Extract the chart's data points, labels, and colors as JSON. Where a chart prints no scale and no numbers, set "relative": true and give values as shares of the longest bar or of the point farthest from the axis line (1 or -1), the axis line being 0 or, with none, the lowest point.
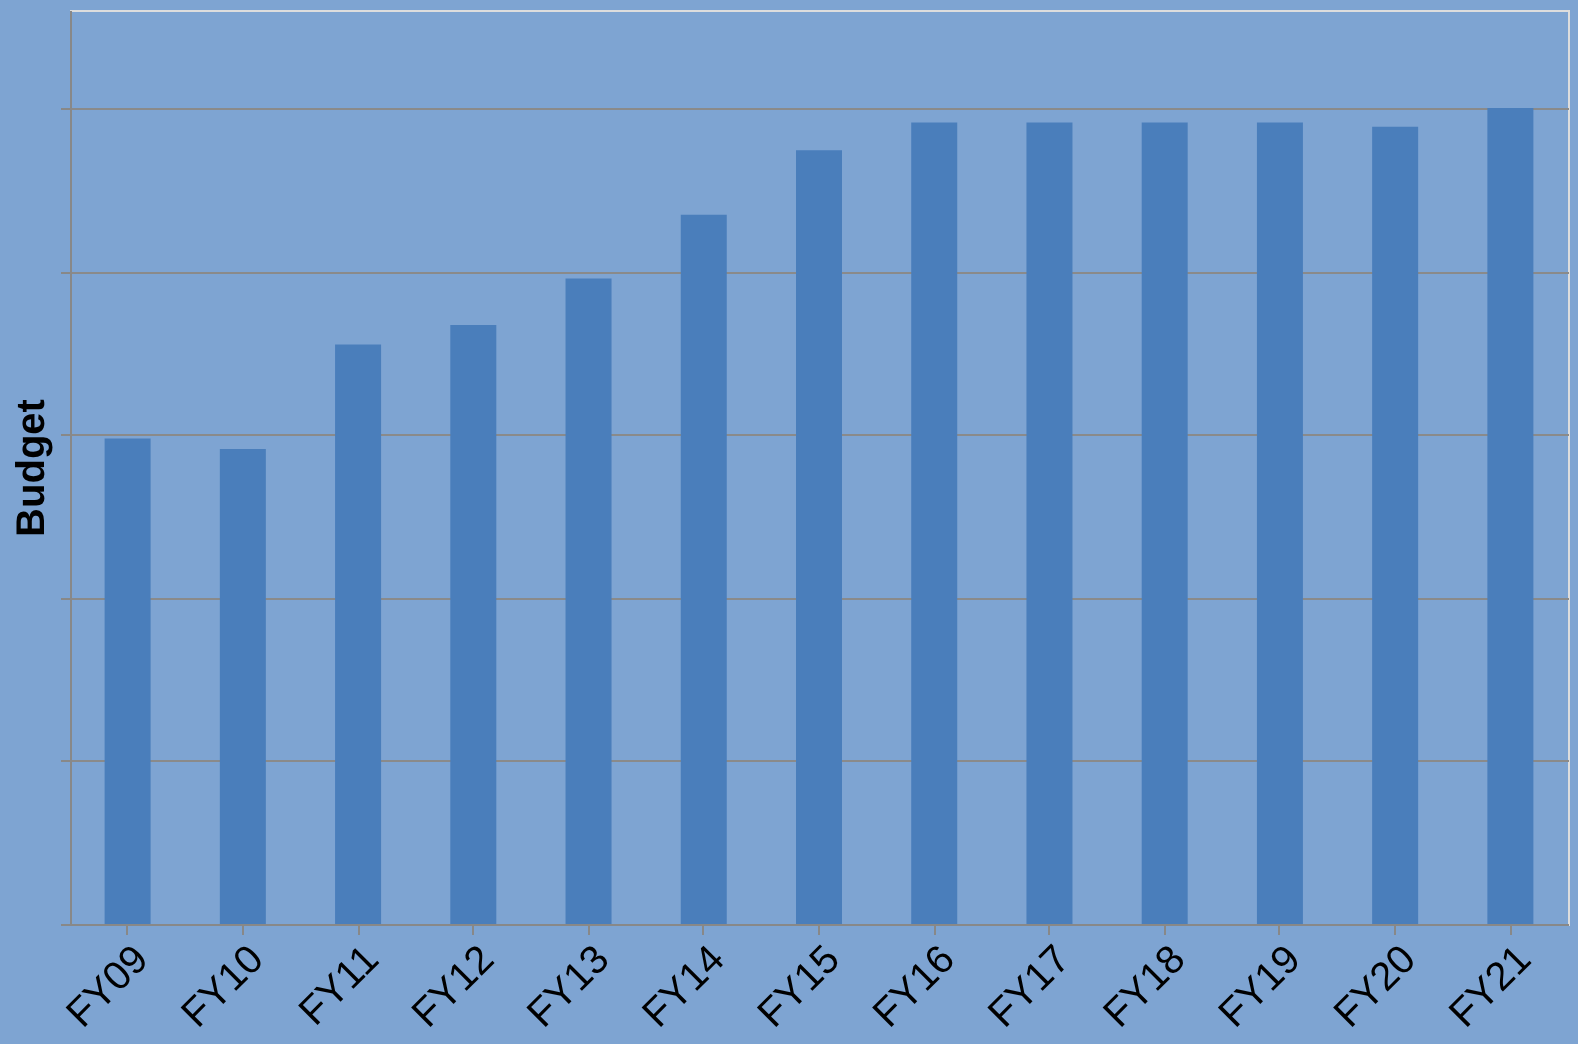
{
  "chart_data": {
    "type": "bar",
    "ylabel": "Budget",
    "relative": true,
    "grid": "y",
    "categories": [
      "FY09",
      "FY10",
      "FY11",
      "FY12",
      "FY13",
      "FY14",
      "FY15",
      "FY16",
      "FY17",
      "FY18",
      "FY19",
      "FY20",
      "FY21"
    ],
    "values": [
      0.595,
      0.582,
      0.71,
      0.734,
      0.791,
      0.869,
      0.948,
      0.982,
      0.982,
      0.982,
      0.982,
      0.977,
      1
    ],
    "color": "#4a7ebb"
  }
}
